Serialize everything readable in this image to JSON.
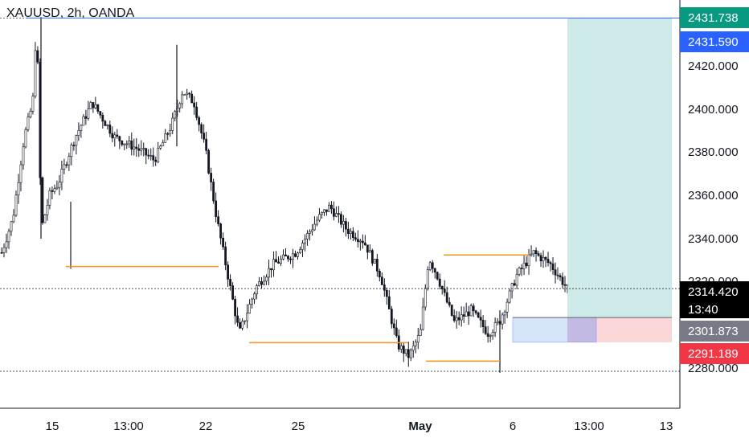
{
  "header": {
    "symbol": "XAUUSD",
    "interval": "2h",
    "exchange": "OANDA"
  },
  "chart_data": {
    "type": "candlestick",
    "symbol": "XAUUSD, 2h, OANDA",
    "ylim": [
      2270,
      2440
    ],
    "y_ticks": [
      "2420.000",
      "2400.000",
      "2380.000",
      "2360.000",
      "2340.000",
      "2320.000",
      "2280.000"
    ],
    "x_ticks": [
      "15",
      "13:00",
      "22",
      "25",
      "May",
      "6",
      "13:00",
      "13"
    ],
    "price_path": [
      [
        0,
        2330
      ],
      [
        0.02,
        2345
      ],
      [
        0.04,
        2380
      ],
      [
        0.055,
        2395
      ],
      [
        0.062,
        2432
      ],
      [
        0.07,
        2340
      ],
      [
        0.085,
        2355
      ],
      [
        0.1,
        2360
      ],
      [
        0.13,
        2380
      ],
      [
        0.16,
        2395
      ],
      [
        0.2,
        2380
      ],
      [
        0.24,
        2375
      ],
      [
        0.27,
        2370
      ],
      [
        0.3,
        2385
      ],
      [
        0.32,
        2400
      ],
      [
        0.34,
        2395
      ],
      [
        0.36,
        2375
      ],
      [
        0.38,
        2345
      ],
      [
        0.4,
        2320
      ],
      [
        0.42,
        2295
      ],
      [
        0.45,
        2315
      ],
      [
        0.48,
        2325
      ],
      [
        0.52,
        2330
      ],
      [
        0.56,
        2345
      ],
      [
        0.58,
        2350
      ],
      [
        0.61,
        2340
      ],
      [
        0.64,
        2335
      ],
      [
        0.67,
        2320
      ],
      [
        0.7,
        2290
      ],
      [
        0.72,
        2285
      ],
      [
        0.74,
        2295
      ],
      [
        0.755,
        2328
      ],
      [
        0.77,
        2320
      ],
      [
        0.8,
        2300
      ],
      [
        0.83,
        2305
      ],
      [
        0.86,
        2295
      ],
      [
        0.88,
        2300
      ],
      [
        0.91,
        2320
      ],
      [
        0.94,
        2330
      ],
      [
        0.97,
        2325
      ],
      [
        1.0,
        2314.42
      ]
    ],
    "support_resistance_lines": [
      {
        "price": 2324,
        "color": "#f7931a"
      },
      {
        "price": 2291,
        "color": "#f7931a"
      },
      {
        "price": 2283,
        "color": "#f7931a"
      },
      {
        "price": 2329,
        "color": "#f7931a"
      }
    ],
    "horizontal_line": {
      "price": 2431.59,
      "color": "#2962ff"
    },
    "long_position": {
      "entry": 2301.873,
      "target": 2431.738,
      "stop": 2291.189
    },
    "price_badges": [
      {
        "label": "2431.738",
        "color": "#089981",
        "price": 2431.738
      },
      {
        "label": "2431.590",
        "color": "#2962ff",
        "price": 2431.59
      },
      {
        "label": "2314.420",
        "sub": "13:40",
        "color": "#000000",
        "price": 2314.42
      },
      {
        "label": "2301.873",
        "color": "#787b86",
        "price": 2301.873
      },
      {
        "label": "2291.189",
        "color": "#f23645",
        "price": 2291.189
      }
    ],
    "grid": false
  }
}
